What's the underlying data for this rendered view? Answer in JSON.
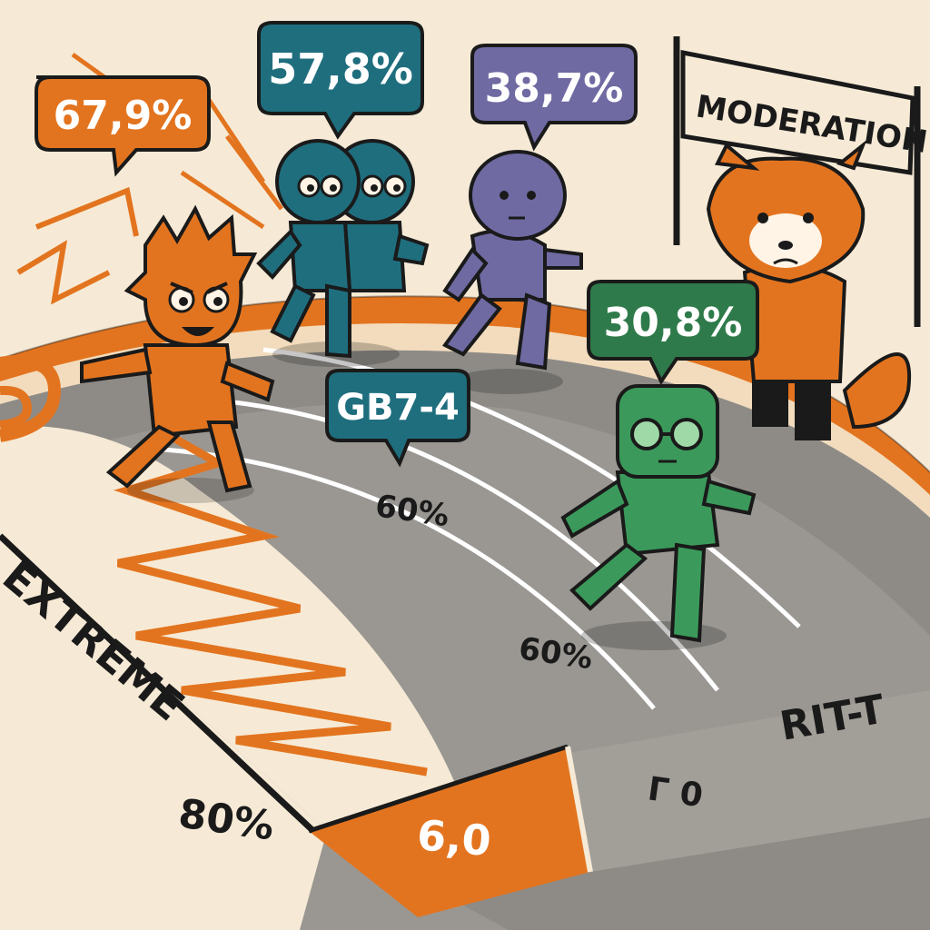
{
  "banner": {
    "text": "MODERATION"
  },
  "bubbles": {
    "orange": "67,9%",
    "teal": "57,8%",
    "purple": "38,7%",
    "green": "30,8%",
    "model": "GB7-4"
  },
  "track_labels": {
    "extreme": "EXTREME",
    "right": "RIT-T",
    "lane_upper": "60%",
    "lane_lower": "60%",
    "left_pct": "80%",
    "start_box": "6,0",
    "gray_box": "Г 0"
  },
  "colors": {
    "orange": "#e3741f",
    "teal": "#1f6e7e",
    "purple": "#6f6aa2",
    "green": "#3b9a5b",
    "dark_green": "#2e7a4a",
    "track_gray": "#8e8b87",
    "background": "#f6ead6",
    "outline": "#1a1a1a"
  },
  "characters": [
    {
      "name": "orange spiky runner",
      "icon": "flame-runner-icon"
    },
    {
      "name": "teal twin runners",
      "icon": "twin-robot-icon"
    },
    {
      "name": "purple runner",
      "icon": "purple-robot-icon"
    },
    {
      "name": "green runner with glasses",
      "icon": "green-robot-icon"
    },
    {
      "name": "red panda referee",
      "icon": "red-panda-icon"
    }
  ]
}
